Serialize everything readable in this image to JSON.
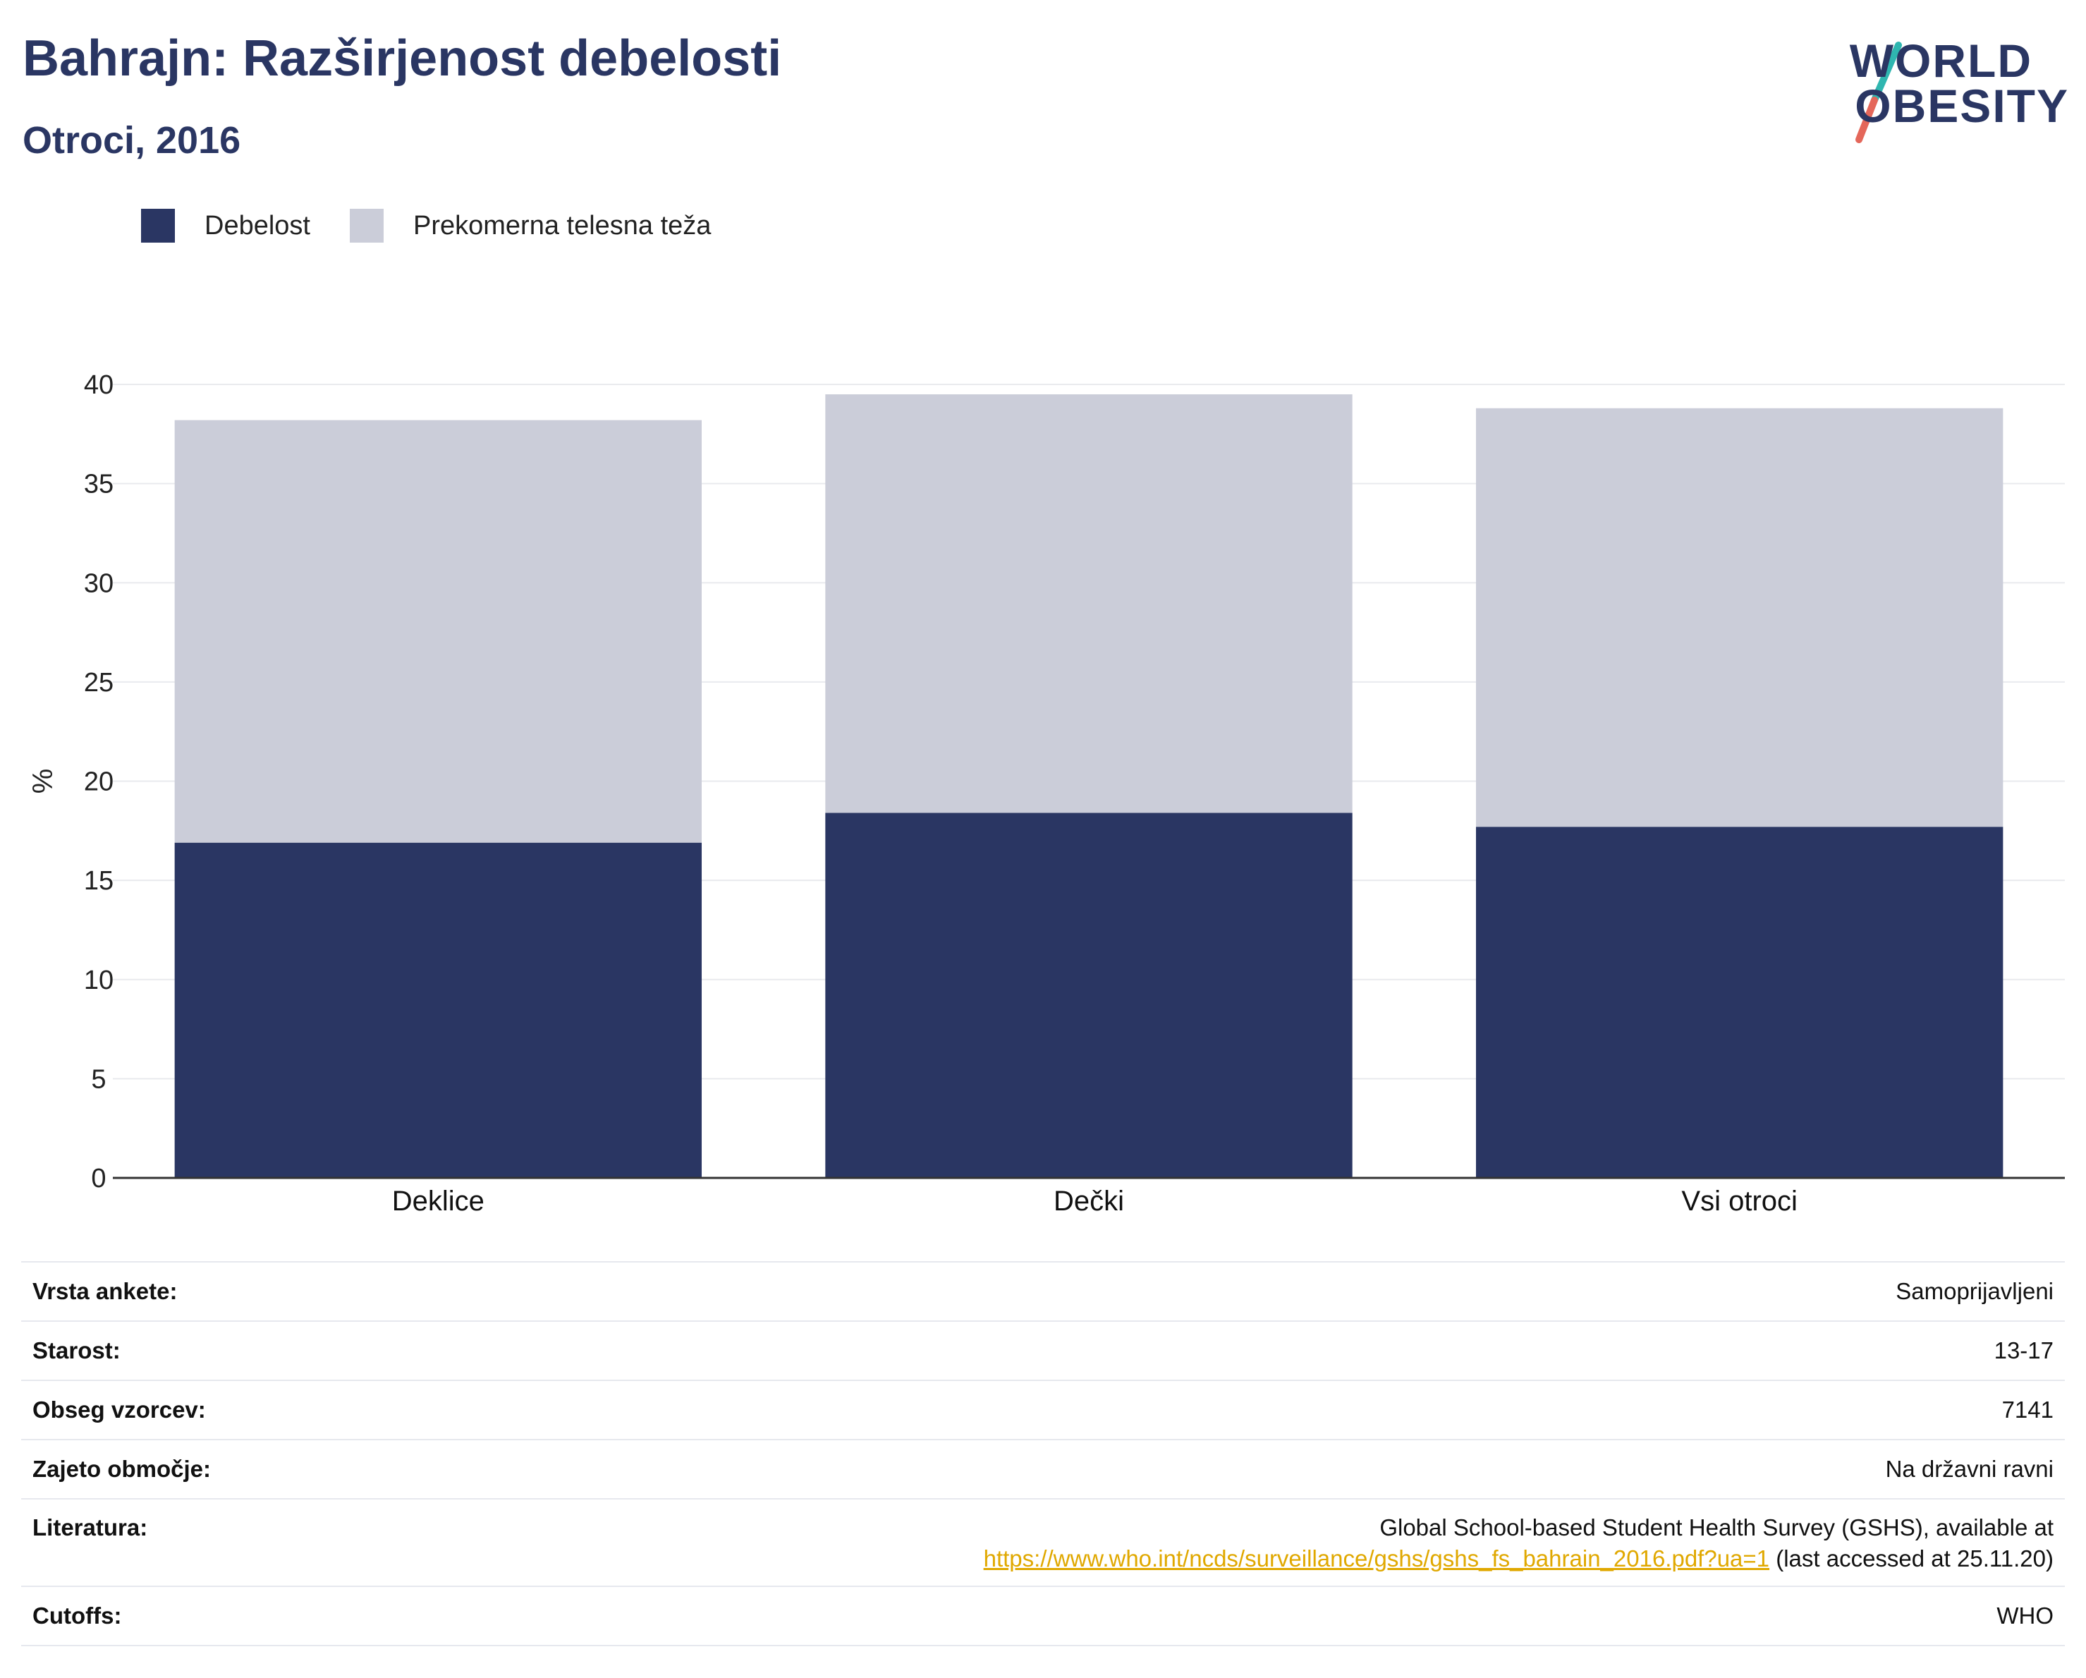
{
  "header": {
    "title": "Bahrajn: Razširjenost debelosti",
    "subtitle": "Otroci, 2016"
  },
  "logo": {
    "line1": "WORLD",
    "line2": "OBESITY",
    "slash_colors": [
      "#2fb6b0",
      "#e4675a"
    ]
  },
  "legend": [
    {
      "label": "Debelost",
      "color": "#2a3663"
    },
    {
      "label": "Prekomerna telesna teža",
      "color": "#cbcdd9"
    }
  ],
  "chart_data": {
    "type": "bar",
    "stacked": true,
    "categories": [
      "Deklice",
      "Dečki",
      "Vsi otroci"
    ],
    "series": [
      {
        "name": "Debelost",
        "values": [
          16.9,
          18.4,
          17.7
        ],
        "color": "#2a3663"
      },
      {
        "name": "Prekomerna telesna teža",
        "values": [
          21.3,
          21.1,
          21.1
        ],
        "color": "#cbcdd9"
      }
    ],
    "ylabel": "%",
    "ylim": [
      0,
      40
    ],
    "yticks": [
      0,
      5,
      10,
      15,
      20,
      25,
      30,
      35,
      40
    ],
    "grid": true,
    "legend_position": "top-left"
  },
  "info": {
    "survey_type_label": "Vrsta ankete:",
    "survey_type_value": "Samoprijavljeni",
    "age_label": "Starost:",
    "age_value": "13-17",
    "sample_label": "Obseg vzorcev:",
    "sample_value": "7141",
    "area_label": "Zajeto območje:",
    "area_value": "Na državni ravni",
    "reference_label": "Literatura:",
    "reference_text": "Global School-based Student Health Survey (GSHS), available at",
    "reference_link": "https://www.who.int/ncds/surveillance/gshs/gshs_fs_bahrain_2016.pdf?ua=1",
    "reference_suffix": "(last accessed at 25.11.20)",
    "cutoffs_label": "Cutoffs:",
    "cutoffs_value": "WHO"
  }
}
